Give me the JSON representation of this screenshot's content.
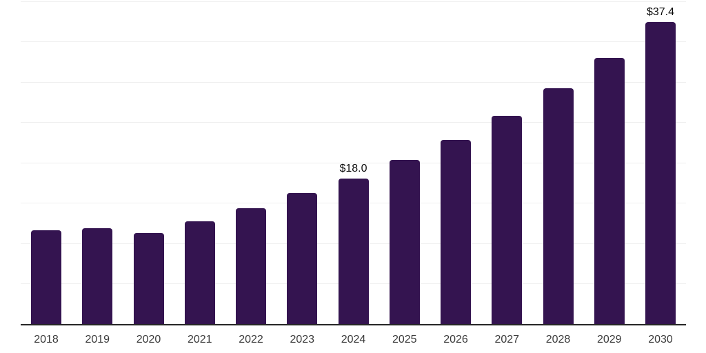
{
  "chart_data": {
    "type": "bar",
    "title": "",
    "xlabel": "",
    "ylabel": "",
    "categories": [
      "2018",
      "2019",
      "2020",
      "2021",
      "2022",
      "2023",
      "2024",
      "2025",
      "2026",
      "2027",
      "2028",
      "2029",
      "2030"
    ],
    "values": [
      11.6,
      11.9,
      11.3,
      12.7,
      14.4,
      16.2,
      18.0,
      20.3,
      22.8,
      25.8,
      29.2,
      33.0,
      37.4
    ],
    "data_labels": [
      "",
      "",
      "",
      "",
      "",
      "",
      "$18.0",
      "",
      "",
      "",
      "",
      "",
      "$37.4"
    ],
    "ylim": [
      0,
      40
    ],
    "ytick_step": 5,
    "y_tick_labels_visible": false,
    "grid": true,
    "legend": null
  },
  "style": {
    "bar_color": "#341450",
    "axis_line_color": "#262626",
    "gridline_color": "#efefef",
    "x_tick_label_color": "#3a3a3a",
    "data_label_color": "#0d0d0d",
    "background_color": "#ffffff"
  }
}
